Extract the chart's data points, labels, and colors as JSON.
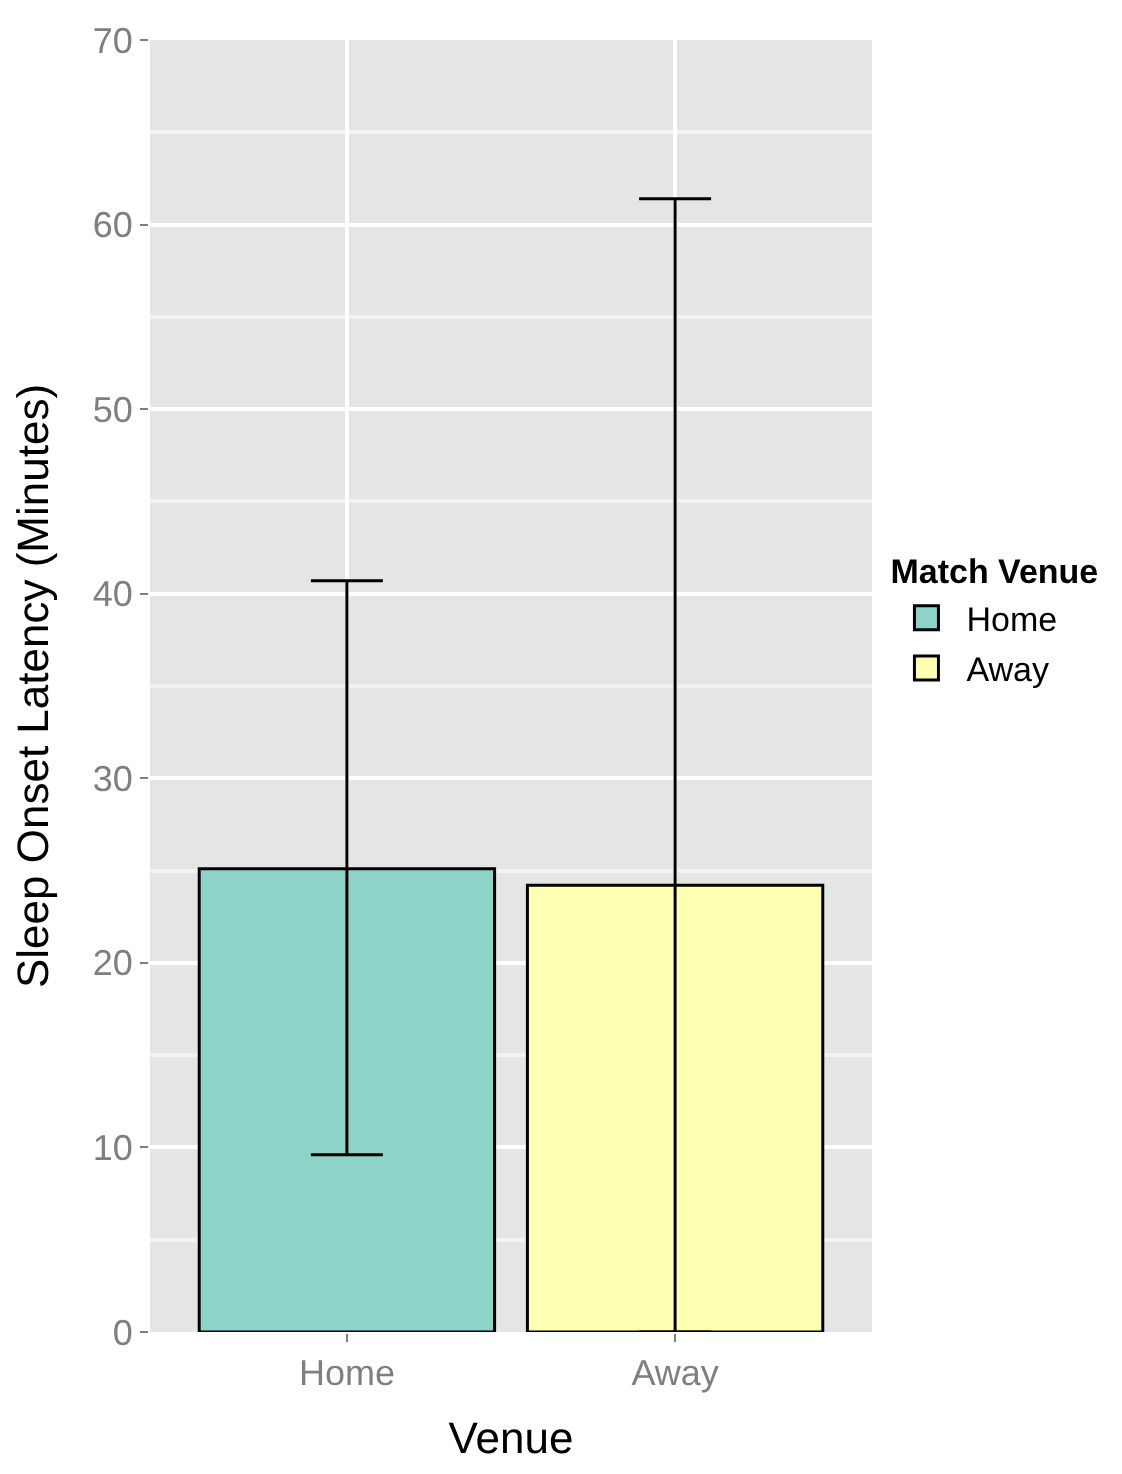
{
  "chart_data": {
    "type": "bar",
    "xlabel": "Venue",
    "ylabel": "Sleep Onset Latency (Minutes)",
    "legend_title": "Match Venue",
    "categories": [
      "Home",
      "Away"
    ],
    "series": [
      {
        "name": "Home",
        "color": "#8dd3c7",
        "values": [
          25.1,
          null
        ],
        "errors": [
          [
            9.6,
            40.7
          ],
          null
        ]
      },
      {
        "name": "Away",
        "color": "#ffffb3",
        "values": [
          null,
          24.2
        ],
        "errors": [
          null,
          [
            0,
            61.4
          ]
        ]
      }
    ],
    "ylim": [
      0,
      70
    ],
    "yticks": [
      0,
      10,
      20,
      30,
      40,
      50,
      60,
      70
    ],
    "grid": true,
    "legend": "right"
  }
}
